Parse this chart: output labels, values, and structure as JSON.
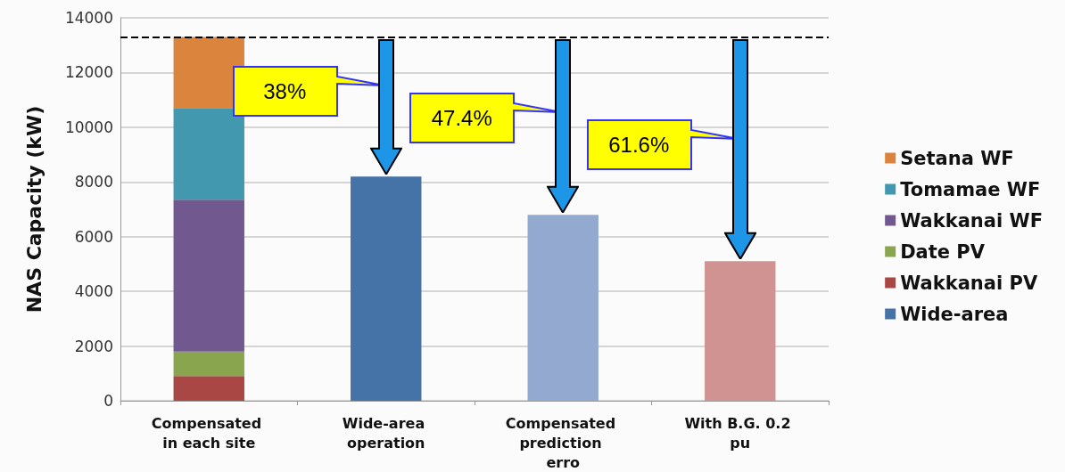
{
  "chart_data": {
    "type": "bar",
    "stacked": true,
    "ylabel": "NAS Capacity (kW)",
    "categories": [
      "Compensated in each site",
      "Wide-area operation",
      "Compensated prediction erro",
      "With B.G. 0.2 pu"
    ],
    "series": [
      {
        "name": "Wakkanai PV",
        "color": "#a84744",
        "values": [
          900,
          null,
          null,
          null
        ]
      },
      {
        "name": "Date PV",
        "color": "#89a54e",
        "values": [
          900,
          null,
          null,
          null
        ]
      },
      {
        "name": "Wakkanai WF",
        "color": "#71588f",
        "values": [
          5550,
          null,
          null,
          null
        ]
      },
      {
        "name": "Tomamae WF",
        "color": "#4198af",
        "values": [
          3350,
          null,
          null,
          null
        ]
      },
      {
        "name": "Setana WF",
        "color": "#db843d",
        "values": [
          2600,
          null,
          null,
          null
        ]
      },
      {
        "name": "Wide-area",
        "color": "#4572a7",
        "colors": [
          "#4572a7",
          "#4572a7",
          "#93a9cf",
          "#d19392"
        ],
        "values": [
          null,
          8200,
          6800,
          5100
        ]
      }
    ],
    "ylim": [
      0,
      14000
    ],
    "yticks": [
      0,
      2000,
      4000,
      6000,
      8000,
      10000,
      12000,
      14000
    ],
    "ref_lines": [
      {
        "axis": "y",
        "value": 13300,
        "color": "#000000",
        "line_style": "dashed"
      }
    ],
    "annotations": [
      "38%",
      "47.4%",
      "61.6%"
    ],
    "grid": "y",
    "legend": "right"
  }
}
